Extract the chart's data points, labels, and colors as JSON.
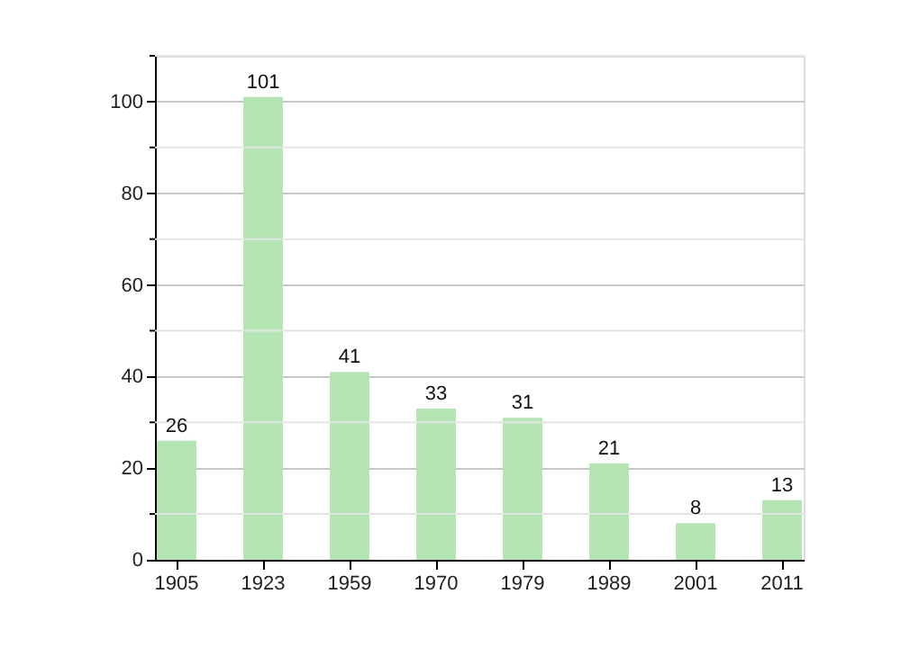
{
  "chart_data": {
    "type": "bar",
    "categories": [
      "1905",
      "1923",
      "1959",
      "1970",
      "1979",
      "1989",
      "2001",
      "2011"
    ],
    "values": [
      26,
      101,
      41,
      33,
      31,
      21,
      8,
      13
    ],
    "color": "#b3e6b3",
    "data_labels": true,
    "grid": "y",
    "ylim": [
      0,
      110
    ],
    "yticks": [
      0,
      {
        "value": 10,
        "label": null
      },
      20,
      {
        "value": 30,
        "label": null
      },
      40,
      {
        "value": 50,
        "label": null
      },
      60,
      {
        "value": 70,
        "label": null
      },
      80,
      {
        "value": 90,
        "label": null
      },
      100,
      {
        "value": 110,
        "label": null
      }
    ]
  }
}
